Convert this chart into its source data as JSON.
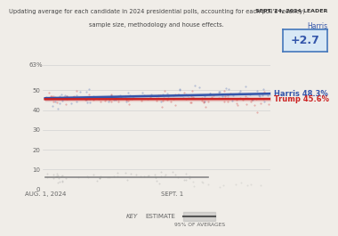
{
  "title_line1": "Updating average for each candidate in 2024 presidential polls, accounting for each poll's recency,",
  "title_line2": "sample size, methodology and house effects.",
  "harris_label": "Harris 48.3%",
  "trump_label": "Trump 45.6%",
  "leader_header": "SEPT. 24, 2024 LEADER",
  "leader_name": "Harris",
  "leader_value": "+2.7",
  "harris_color": "#3355aa",
  "trump_color": "#cc2222",
  "gray_color": "#888888",
  "scatter_alpha": 0.35,
  "ylim": [
    0,
    63
  ],
  "xlabel_aug": "AUG. 1, 2024",
  "xlabel_sept": "SEPT. 1",
  "key_estimate": "ESTIMATE",
  "key_95": "95% OF AVERAGES",
  "background_color": "#f0ede8",
  "leader_box_color": "#d8e8f5",
  "leader_box_border": "#4477bb"
}
